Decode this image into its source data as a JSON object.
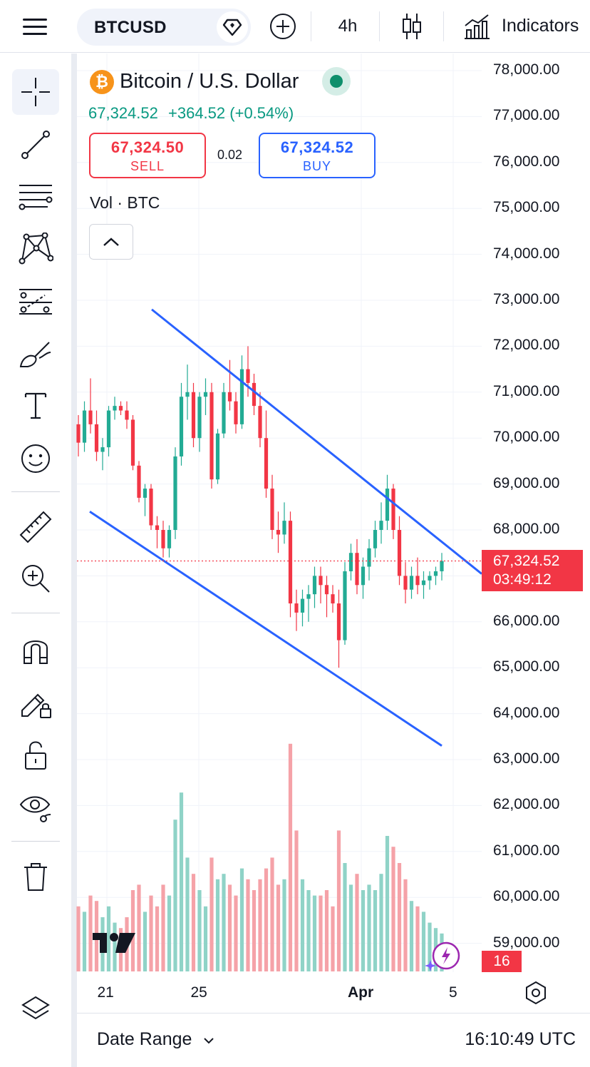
{
  "toolbar": {
    "symbol": "BTCUSD",
    "interval": "4h",
    "indicators_label": "Indicators",
    "icons": [
      "menu-icon",
      "diamond-flag-icon",
      "add-circle-icon",
      "candles-icon",
      "indicators-chart-icon"
    ]
  },
  "legend": {
    "title": "Bitcoin / U.S. Dollar",
    "price": "67,324.52",
    "change": "+364.52",
    "change_pct": "(+0.54%)",
    "sell_price": "67,324.50",
    "sell_label": "SELL",
    "buy_price": "67,324.52",
    "buy_label": "BUY",
    "spread": "0.02",
    "volume_label": "Vol · BTC"
  },
  "left_tools": [
    "crosshair-icon",
    "trendline-icon",
    "fib-icon",
    "pattern-icon",
    "forecast-icon",
    "brush-icon",
    "text-icon",
    "emoji-icon",
    "ruler-icon",
    "zoom-in-icon",
    "magnet-icon",
    "lock-drawing-icon",
    "lock-icon",
    "eye-icon",
    "trash-icon"
  ],
  "price_axis": [
    "78,000.00",
    "77,000.00",
    "76,000.00",
    "75,000.00",
    "74,000.00",
    "73,000.00",
    "72,000.00",
    "71,000.00",
    "70,000.00",
    "69,000.00",
    "68,000.00",
    "67,000.00",
    "66,000.00",
    "65,000.00",
    "64,000.00",
    "63,000.00",
    "62,000.00",
    "61,000.00",
    "60,000.00",
    "59,000.00"
  ],
  "current_price_tag": {
    "price": "67,324.52",
    "countdown": "03:49:12"
  },
  "volume_tag": "16",
  "time_axis": [
    {
      "label": "21",
      "bold": false
    },
    {
      "label": "25",
      "bold": false
    },
    {
      "label": "Apr",
      "bold": true
    },
    {
      "label": "5",
      "bold": false
    }
  ],
  "bottom": {
    "date_range_label": "Date Range",
    "clock": "16:10:49 UTC"
  },
  "colors": {
    "up": "#22ab94",
    "down": "#f23645",
    "up_volume": "#8fd3c7",
    "down_volume": "#f5a2a8",
    "channel": "#2962ff",
    "accent_green": "#089981"
  },
  "chart_data": {
    "type": "candlestick",
    "symbol": "BTCUSD",
    "interval": "4h",
    "ylim": [
      58500,
      78500
    ],
    "candles": [
      [
        70300,
        70500,
        69600,
        69900,
        120
      ],
      [
        69900,
        70800,
        69700,
        70600,
        110
      ],
      [
        70600,
        71300,
        70100,
        70300,
        140
      ],
      [
        70300,
        70600,
        69500,
        69700,
        130
      ],
      [
        69700,
        70000,
        69300,
        69800,
        100
      ],
      [
        69800,
        70700,
        69600,
        70600,
        120
      ],
      [
        70600,
        70900,
        70400,
        70700,
        90
      ],
      [
        70700,
        70800,
        70500,
        70600,
        80
      ],
      [
        70600,
        70800,
        70200,
        70400,
        100
      ],
      [
        70400,
        70500,
        69300,
        69400,
        150
      ],
      [
        69400,
        69500,
        68600,
        68700,
        160
      ],
      [
        68700,
        69000,
        68300,
        68900,
        110
      ],
      [
        68900,
        69000,
        68000,
        68100,
        140
      ],
      [
        68100,
        68300,
        67600,
        68000,
        120
      ],
      [
        68000,
        68200,
        67400,
        67600,
        160
      ],
      [
        67600,
        68100,
        67400,
        68000,
        140
      ],
      [
        68000,
        69800,
        67800,
        69600,
        280
      ],
      [
        69600,
        71200,
        69400,
        70900,
        330
      ],
      [
        70900,
        71600,
        70400,
        71000,
        210
      ],
      [
        71000,
        71200,
        69800,
        70000,
        180
      ],
      [
        70000,
        71000,
        69700,
        70900,
        150
      ],
      [
        70900,
        71300,
        70500,
        71000,
        120
      ],
      [
        71000,
        71200,
        68900,
        69100,
        210
      ],
      [
        69100,
        70200,
        69000,
        70100,
        170
      ],
      [
        70100,
        71200,
        70000,
        71000,
        180
      ],
      [
        71000,
        71700,
        70600,
        70800,
        160
      ],
      [
        70800,
        71000,
        70100,
        70300,
        140
      ],
      [
        70300,
        71800,
        70200,
        71500,
        190
      ],
      [
        71500,
        72000,
        70900,
        71200,
        170
      ],
      [
        71200,
        71400,
        70500,
        70700,
        150
      ],
      [
        70700,
        71000,
        69800,
        70000,
        170
      ],
      [
        70000,
        70600,
        68700,
        68900,
        190
      ],
      [
        68900,
        69200,
        67800,
        68000,
        210
      ],
      [
        68000,
        68400,
        67500,
        67900,
        160
      ],
      [
        67900,
        68600,
        67700,
        68200,
        170
      ],
      [
        68200,
        68400,
        66100,
        66400,
        420
      ],
      [
        66400,
        66700,
        65800,
        66200,
        260
      ],
      [
        66200,
        66700,
        65900,
        66500,
        170
      ],
      [
        66500,
        66800,
        66000,
        66600,
        150
      ],
      [
        66600,
        67200,
        66300,
        67000,
        140
      ],
      [
        67000,
        67200,
        66400,
        66800,
        140
      ],
      [
        66800,
        67000,
        66100,
        66600,
        150
      ],
      [
        66600,
        66800,
        66200,
        66400,
        120
      ],
      [
        66400,
        66700,
        65000,
        65600,
        260
      ],
      [
        65600,
        67300,
        65500,
        67100,
        200
      ],
      [
        67100,
        67700,
        66900,
        67500,
        160
      ],
      [
        67500,
        67800,
        66600,
        66800,
        180
      ],
      [
        66800,
        67400,
        66500,
        67200,
        150
      ],
      [
        67200,
        67800,
        66900,
        67600,
        160
      ],
      [
        67600,
        68200,
        67400,
        68000,
        150
      ],
      [
        68000,
        68600,
        67700,
        68200,
        180
      ],
      [
        68200,
        69200,
        68000,
        68900,
        250
      ],
      [
        68900,
        69000,
        67800,
        68000,
        230
      ],
      [
        68000,
        68300,
        66800,
        67000,
        200
      ],
      [
        67000,
        67300,
        66400,
        66700,
        170
      ],
      [
        66700,
        67200,
        66500,
        67000,
        130
      ],
      [
        67000,
        67400,
        66600,
        66800,
        120
      ],
      [
        66800,
        67100,
        66500,
        66900,
        110
      ],
      [
        66900,
        67100,
        66700,
        67000,
        90
      ],
      [
        67000,
        67200,
        66800,
        67100,
        80
      ],
      [
        67100,
        67500,
        66900,
        67324.52,
        70
      ]
    ],
    "channel_upper": {
      "start": [
        "Mar 23",
        72800
      ],
      "end": [
        "Apr 5",
        67200
      ]
    },
    "channel_lower": {
      "start": [
        "Mar 20",
        68400
      ],
      "end": [
        "Apr 4",
        63300
      ]
    },
    "current_price": 67324.52
  }
}
